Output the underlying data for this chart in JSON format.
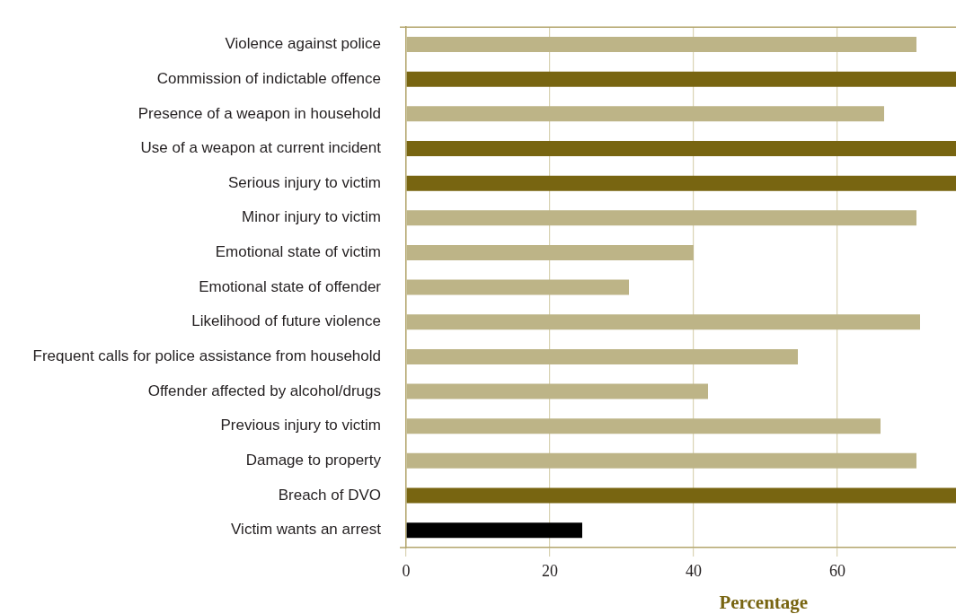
{
  "chart_data": {
    "type": "bar",
    "orientation": "horizontal",
    "xlabel": "Percentage",
    "categories": [
      "Violence against police",
      "Commission of indictable offence",
      "Presence of a weapon in household",
      "Use of a weapon at current incident",
      "Serious injury to victim",
      "Minor injury to victim",
      "Emotional state of victim",
      "Emotional state of offender",
      "Likelihood of future violence",
      "Frequent calls for police assistance from household",
      "Offender affected by alcohol/drugs",
      "Previous injury to victim",
      "Damage to property",
      "Breach of DVO",
      "Victim wants an arrest"
    ],
    "values": [
      71,
      76.5,
      66.5,
      76.5,
      76.5,
      71,
      40,
      31,
      71.5,
      54.5,
      42,
      66,
      71,
      76.5,
      24.5
    ],
    "colors": [
      "#bdb487",
      "#786511",
      "#bdb487",
      "#786511",
      "#786511",
      "#bdb487",
      "#bdb487",
      "#bdb487",
      "#bdb487",
      "#bdb487",
      "#bdb487",
      "#bdb487",
      "#bdb487",
      "#786511",
      "#000000"
    ],
    "xlim": [
      0,
      76.5
    ],
    "xticks": [
      0,
      20,
      40,
      60
    ],
    "grid": "x"
  }
}
